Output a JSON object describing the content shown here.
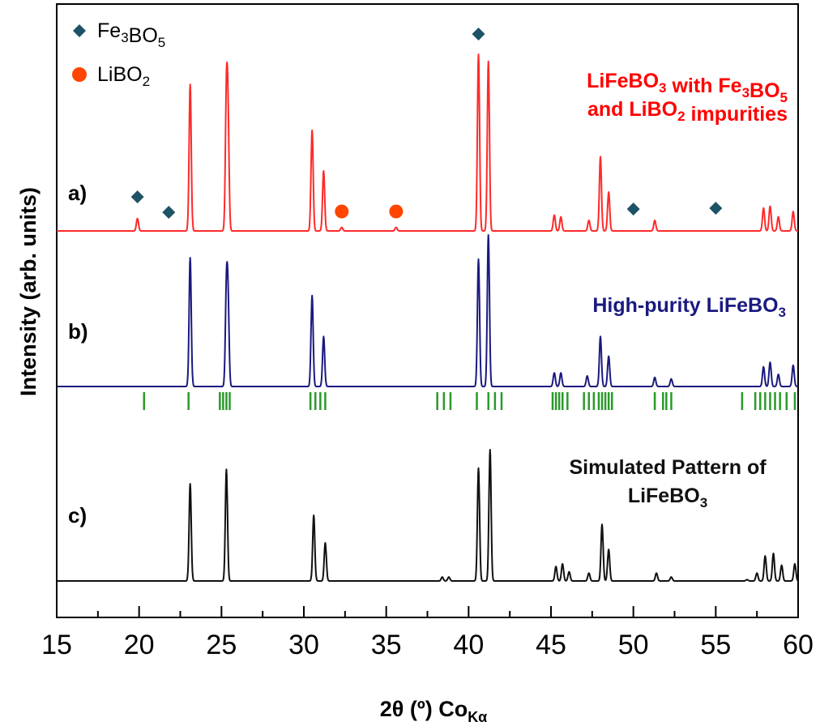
{
  "chart_data": {
    "type": "line",
    "xlabel": "2θ (º) Co",
    "xlabel_sub": "Kα",
    "ylabel": "Intensity (arb. units)",
    "xlim": [
      15,
      60
    ],
    "xticks": [
      15,
      20,
      25,
      30,
      35,
      40,
      45,
      50,
      55,
      60
    ],
    "grid": false,
    "legend": {
      "placement": "top-left",
      "entries": [
        {
          "main": "Fe",
          "sub1": "3",
          "mid": "BO",
          "sub2": "5",
          "marker": "diamond",
          "color": "#1e5266"
        },
        {
          "main": "LiBO",
          "sub1": "2",
          "mid": "",
          "sub2": "",
          "marker": "circle",
          "color": "#ff4500"
        }
      ]
    },
    "series": [
      {
        "label": "a)",
        "color": "#ff2a2a",
        "annotation": [
          {
            "parts": [
              [
                "LiFeBO",
                ""
              ],
              [
                "3",
                "sub"
              ],
              [
                " with Fe",
                ""
              ],
              [
                "3",
                "sub"
              ],
              [
                "BO",
                ""
              ],
              [
                "5",
                "sub"
              ]
            ]
          },
          {
            "parts": [
              [
                "and LiBO",
                ""
              ],
              [
                "2",
                "sub"
              ],
              [
                " impurities",
                ""
              ]
            ]
          }
        ],
        "annotation_color": "#ff0000",
        "peaks": [
          [
            19.9,
            0.07
          ],
          [
            23.1,
            0.83
          ],
          [
            25.3,
            0.72
          ],
          [
            25.4,
            0.55
          ],
          [
            30.5,
            0.57
          ],
          [
            31.2,
            0.34
          ],
          [
            32.3,
            0.02
          ],
          [
            35.6,
            0.02
          ],
          [
            40.6,
            1.0
          ],
          [
            41.2,
            0.96
          ],
          [
            45.2,
            0.09
          ],
          [
            45.6,
            0.08
          ],
          [
            47.3,
            0.06
          ],
          [
            48.0,
            0.42
          ],
          [
            48.5,
            0.22
          ],
          [
            51.3,
            0.06
          ],
          [
            57.9,
            0.13
          ],
          [
            58.3,
            0.14
          ],
          [
            58.8,
            0.08
          ],
          [
            59.7,
            0.11
          ]
        ],
        "markers": [
          {
            "x": 19.9,
            "type": "diamond"
          },
          {
            "x": 21.8,
            "type": "diamond"
          },
          {
            "x": 32.3,
            "type": "circle"
          },
          {
            "x": 35.6,
            "type": "circle"
          },
          {
            "x": 40.6,
            "type": "diamond"
          },
          {
            "x": 50.0,
            "type": "diamond"
          },
          {
            "x": 55.0,
            "type": "diamond"
          }
        ]
      },
      {
        "label": "b)",
        "color": "#1a1a80",
        "annotation": [
          {
            "parts": [
              [
                "High-purity LiFeBO",
                ""
              ],
              [
                "3",
                "sub"
              ]
            ]
          }
        ],
        "annotation_color": "#1a1a80",
        "peaks": [
          [
            23.1,
            0.85
          ],
          [
            25.3,
            0.6
          ],
          [
            25.4,
            0.5
          ],
          [
            30.5,
            0.6
          ],
          [
            31.2,
            0.33
          ],
          [
            40.6,
            0.84
          ],
          [
            41.2,
            1.0
          ],
          [
            45.2,
            0.09
          ],
          [
            45.6,
            0.09
          ],
          [
            47.2,
            0.07
          ],
          [
            48.0,
            0.33
          ],
          [
            48.5,
            0.2
          ],
          [
            51.3,
            0.06
          ],
          [
            52.3,
            0.05
          ],
          [
            57.9,
            0.13
          ],
          [
            58.3,
            0.16
          ],
          [
            58.8,
            0.08
          ],
          [
            59.7,
            0.14
          ]
        ]
      },
      {
        "label": "c)",
        "color": "#111111",
        "annotation": [
          {
            "parts": [
              [
                "Simulated Pattern of",
                ""
              ]
            ]
          },
          {
            "parts": [
              [
                "LiFeBO",
                ""
              ],
              [
                "3",
                "sub"
              ]
            ]
          }
        ],
        "annotation_color": "#111111",
        "peaks": [
          [
            23.1,
            0.74
          ],
          [
            25.3,
            0.85
          ],
          [
            30.6,
            0.5
          ],
          [
            31.3,
            0.29
          ],
          [
            38.4,
            0.03
          ],
          [
            38.8,
            0.03
          ],
          [
            40.6,
            0.86
          ],
          [
            41.3,
            1.0
          ],
          [
            45.3,
            0.11
          ],
          [
            45.7,
            0.13
          ],
          [
            46.1,
            0.07
          ],
          [
            47.3,
            0.06
          ],
          [
            48.1,
            0.43
          ],
          [
            48.5,
            0.24
          ],
          [
            51.4,
            0.06
          ],
          [
            52.3,
            0.03
          ],
          [
            56.9,
            0.01
          ],
          [
            57.5,
            0.06
          ],
          [
            58.0,
            0.19
          ],
          [
            58.5,
            0.21
          ],
          [
            59.0,
            0.12
          ],
          [
            59.8,
            0.13
          ]
        ]
      }
    ],
    "reference_ticks": {
      "color": "#2a9a2a",
      "x": [
        20.3,
        23.0,
        24.9,
        25.1,
        25.3,
        25.5,
        30.4,
        30.7,
        31.0,
        31.3,
        38.1,
        38.5,
        38.9,
        40.5,
        41.2,
        41.6,
        42.0,
        45.1,
        45.3,
        45.5,
        45.7,
        46.0,
        47.0,
        47.3,
        47.6,
        47.9,
        48.1,
        48.3,
        48.5,
        48.7,
        51.3,
        51.8,
        52.0,
        52.3,
        56.6,
        57.4,
        57.7,
        58.0,
        58.3,
        58.6,
        58.9,
        59.3,
        59.8
      ]
    }
  }
}
